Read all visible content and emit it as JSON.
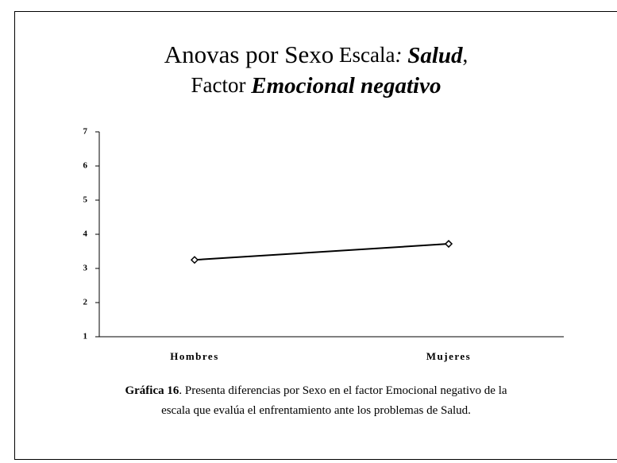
{
  "chart_data": {
    "type": "line",
    "title": [
      [
        {
          "text": "Anovas por Sexo",
          "style": "large"
        },
        {
          "text": " Escala",
          "style": "normal"
        },
        {
          "text": ": ",
          "style": "italic"
        },
        {
          "text": "Salud",
          "style": "bold-italic"
        },
        {
          "text": ",",
          "style": "normal"
        }
      ],
      [
        {
          "text": "Factor ",
          "style": "normal"
        },
        {
          "text": "Emocional negativo",
          "style": "bold-italic"
        }
      ]
    ],
    "categories": [
      "Hombres",
      "Mujeres"
    ],
    "values": [
      3.25,
      3.72
    ],
    "color": "#000000",
    "ylim": [
      1,
      7
    ],
    "yticks": [
      1,
      2,
      3,
      4,
      5,
      6,
      7
    ],
    "caption": [
      [
        {
          "text": "Gráfica 16",
          "style": "bold"
        },
        {
          "text": ". Presenta diferencias por Sexo en el factor Emocional negativo de la",
          "style": "normal"
        }
      ],
      [
        {
          "text": "escala que evalúa el enfrentamiento ante los problemas de Salud.",
          "style": "normal"
        }
      ]
    ]
  }
}
